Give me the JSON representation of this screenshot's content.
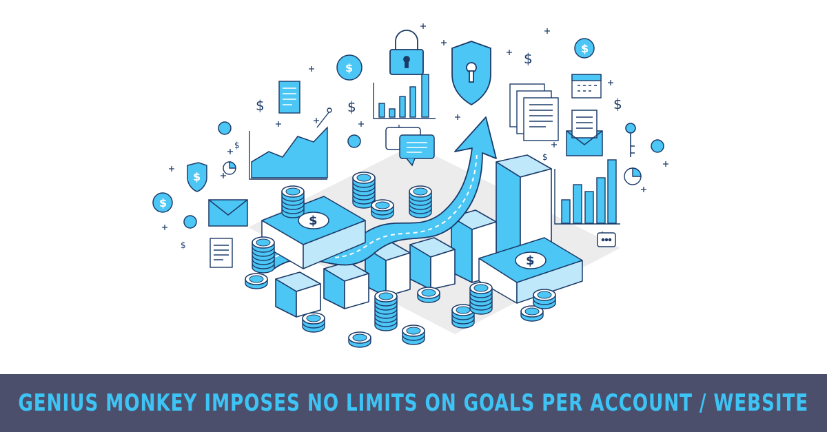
{
  "banner": {
    "title": "GENIUS MONKEY IMPOSES NO LIMITS ON GOALS PER ACCOUNT / WEBSITE"
  },
  "illustration": {
    "currency_symbol": "$",
    "colors": {
      "accent": "#4cc6f5",
      "accent_dark": "#1d93d2",
      "outline": "#1b3a68",
      "shadow": "#e6e6e6",
      "banner_bg": "#4b4f6b",
      "banner_text": "#3ec3f5"
    },
    "icons": [
      "padlock-icon",
      "shield-keyhole-icon",
      "dollar-cycle-icon",
      "document-icon",
      "envelope-icon",
      "chat-bubble-icon",
      "pie-chart-icon",
      "calendar-icon",
      "key-icon",
      "bar-chart-icon",
      "line-chart-icon",
      "coin-stack-icon",
      "cash-bundle-icon",
      "growth-arrow-icon"
    ]
  }
}
